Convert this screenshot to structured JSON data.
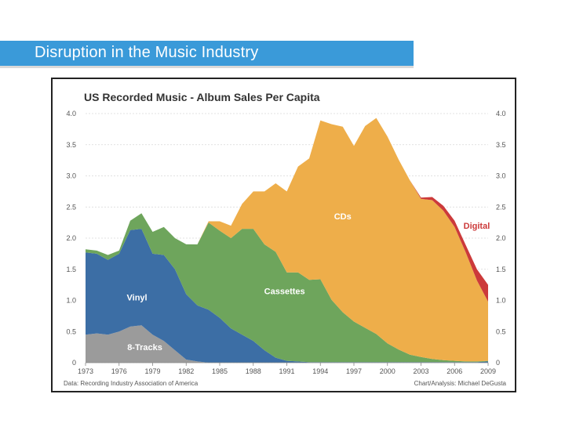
{
  "slide": {
    "title": "Disruption in the Music Industry"
  },
  "chart_data": {
    "type": "area",
    "title": "US Recorded Music - Album Sales Per Capita",
    "stacked": true,
    "ylim": [
      0,
      4.0
    ],
    "yticks": [
      "0",
      "0.5",
      "1.0",
      "1.5",
      "2.0",
      "2.5",
      "3.0",
      "3.5",
      "4.0"
    ],
    "xlabels": [
      "1973",
      "1976",
      "1979",
      "1982",
      "1985",
      "1988",
      "1991",
      "1994",
      "1997",
      "2000",
      "2003",
      "2006",
      "2009"
    ],
    "x": [
      1973,
      1974,
      1975,
      1976,
      1977,
      1978,
      1979,
      1980,
      1981,
      1982,
      1983,
      1984,
      1985,
      1986,
      1987,
      1988,
      1989,
      1990,
      1991,
      1992,
      1993,
      1994,
      1995,
      1996,
      1997,
      1998,
      1999,
      2000,
      2001,
      2002,
      2003,
      2004,
      2005,
      2006,
      2007,
      2008,
      2009
    ],
    "series": [
      {
        "name": "8-Tracks",
        "color": "#9b9b9b",
        "values": [
          0.45,
          0.47,
          0.45,
          0.5,
          0.58,
          0.6,
          0.45,
          0.35,
          0.2,
          0.05,
          0.02,
          0,
          0,
          0,
          0,
          0,
          0,
          0,
          0,
          0,
          0,
          0,
          0,
          0,
          0,
          0,
          0,
          0,
          0,
          0,
          0,
          0,
          0,
          0,
          0,
          0,
          0
        ]
      },
      {
        "name": "Vinyl",
        "color": "#3c6ea5",
        "values": [
          1.32,
          1.28,
          1.2,
          1.25,
          1.55,
          1.55,
          1.3,
          1.38,
          1.3,
          1.05,
          0.9,
          0.85,
          0.72,
          0.55,
          0.45,
          0.35,
          0.2,
          0.08,
          0.03,
          0.02,
          0.01,
          0.01,
          0.01,
          0.01,
          0.01,
          0.01,
          0.01,
          0.01,
          0.01,
          0.01,
          0.01,
          0.01,
          0.01,
          0.01,
          0.01,
          0.01,
          0.02
        ]
      },
      {
        "name": "Cassettes",
        "color": "#6ea55c",
        "values": [
          0.05,
          0.05,
          0.08,
          0.05,
          0.15,
          0.25,
          0.35,
          0.45,
          0.5,
          0.8,
          0.98,
          1.4,
          1.4,
          1.45,
          1.7,
          1.8,
          1.7,
          1.7,
          1.42,
          1.43,
          1.32,
          1.33,
          1.0,
          0.8,
          0.65,
          0.55,
          0.45,
          0.3,
          0.2,
          0.12,
          0.08,
          0.05,
          0.03,
          0.02,
          0.01,
          0.01,
          0.01
        ]
      },
      {
        "name": "CDs",
        "color": "#eeae4a",
        "values": [
          0,
          0,
          0,
          0,
          0,
          0,
          0,
          0,
          0,
          0,
          0,
          0.02,
          0.15,
          0.2,
          0.4,
          0.6,
          0.85,
          1.1,
          1.3,
          1.7,
          1.95,
          2.55,
          2.82,
          2.98,
          2.82,
          3.24,
          3.47,
          3.32,
          3.05,
          2.8,
          2.54,
          2.55,
          2.4,
          2.15,
          1.75,
          1.3,
          0.95
        ]
      },
      {
        "name": "Digital",
        "color": "#cc3a3a",
        "values": [
          0,
          0,
          0,
          0,
          0,
          0,
          0,
          0,
          0,
          0,
          0,
          0,
          0,
          0,
          0,
          0,
          0,
          0,
          0,
          0,
          0,
          0,
          0,
          0,
          0,
          0,
          0,
          0,
          0,
          0,
          0.02,
          0.05,
          0.08,
          0.1,
          0.12,
          0.18,
          0.27
        ]
      }
    ],
    "series_labels": [
      "Vinyl",
      "8-Tracks",
      "Cassettes",
      "CDs",
      "Digital"
    ],
    "source": "Data: Recording Industry Association of America",
    "credit": "Chart/Analysis: Michael DeGusta"
  }
}
